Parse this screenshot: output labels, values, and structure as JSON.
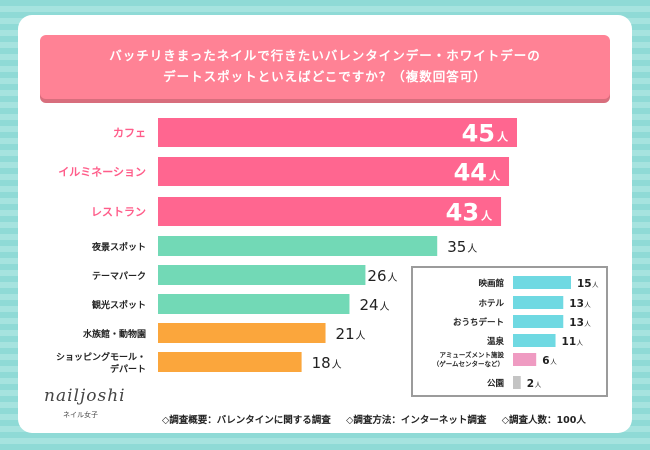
{
  "chart_data": {
    "type": "bar",
    "orientation": "horizontal",
    "title": "バッチリきまったネイルで行きたいバレンタインデー・ホワイトデーのデートスポットといえばどこですか？（複数回答可）",
    "title_lines": [
      "バッチリきまったネイルで行きたいバレンタインデー・ホワイトデーの",
      "デートスポットといえばどこですか？（複数回答可）"
    ],
    "unit": "人",
    "categories": [
      "カフェ",
      "イルミネーション",
      "レストラン",
      "夜景スポット",
      "テーマパーク",
      "観光スポット",
      "水族館・動物園",
      "ショッピングモール・デパート"
    ],
    "category_lines": [
      [
        "カフェ"
      ],
      [
        "イルミネーション"
      ],
      [
        "レストラン"
      ],
      [
        "夜景スポット"
      ],
      [
        "テーマパーク"
      ],
      [
        "観光スポット"
      ],
      [
        "水族館・動物園"
      ],
      [
        "ショッピングモール・",
        "デパート"
      ]
    ],
    "values": [
      45,
      44,
      43,
      35,
      26,
      24,
      21,
      18
    ],
    "colors": [
      "#ff6690",
      "#ff6690",
      "#ff6690",
      "#72d9b6",
      "#72d9b6",
      "#72d9b6",
      "#fba63c",
      "#fba63c"
    ],
    "label_colors": [
      "#ff5d8a",
      "#ff5d8a",
      "#ff5d8a",
      "#222222",
      "#222222",
      "#222222",
      "#222222",
      "#222222"
    ],
    "inset": {
      "categories": [
        "映画館",
        "ホテル",
        "おうちデート",
        "温泉",
        "アミューズメント施設（ゲームセンターなど）",
        "公園"
      ],
      "category_lines": [
        [
          "映画館"
        ],
        [
          "ホテル"
        ],
        [
          "おうちデート"
        ],
        [
          "温泉"
        ],
        [
          "アミューズメント施設",
          "（ゲームセンターなど）"
        ],
        [
          "公園"
        ]
      ],
      "values": [
        15,
        13,
        13,
        11,
        6,
        2
      ],
      "colors": [
        "#6fd9e2",
        "#6fd9e2",
        "#6fd9e2",
        "#6fd9e2",
        "#ef9bc2",
        "#c4c4c4"
      ]
    },
    "xlim": [
      0,
      45
    ],
    "grid": false,
    "legend": "none"
  },
  "brand": {
    "logo": "nailjoshi",
    "logo_sub": "ネイル女子"
  },
  "footer": {
    "overview": "◇調査概要：バレンタインに関する調査",
    "method": "◇調査方法：インターネット調査",
    "count": "◇調査人数：100人"
  }
}
